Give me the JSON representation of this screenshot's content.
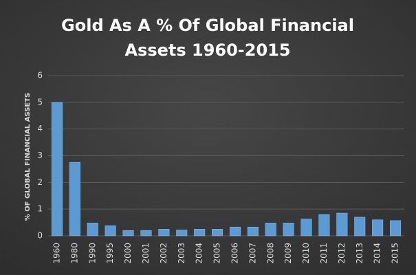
{
  "chart_data": {
    "type": "bar",
    "title": [
      "Gold As A % Of Global Financial",
      "Assets 1960-2015"
    ],
    "y_label": "% OF GLOBAL FINANCIAL ASSETS",
    "categories": [
      "1960",
      "1980",
      "1990",
      "1995",
      "2000",
      "2001",
      "2002",
      "2003",
      "2004",
      "2005",
      "2006",
      "2007",
      "2008",
      "2009",
      "2010",
      "2011",
      "2012",
      "2013",
      "2014",
      "2015"
    ],
    "values": [
      5.0,
      2.75,
      0.48,
      0.38,
      0.2,
      0.2,
      0.25,
      0.22,
      0.25,
      0.25,
      0.33,
      0.33,
      0.48,
      0.48,
      0.63,
      0.8,
      0.85,
      0.7,
      0.6,
      0.57
    ],
    "color": "#5b9bd5",
    "ylim": [
      0,
      6
    ],
    "yticks": [
      0,
      1,
      2,
      3,
      4,
      5,
      6
    ],
    "grid": true
  }
}
